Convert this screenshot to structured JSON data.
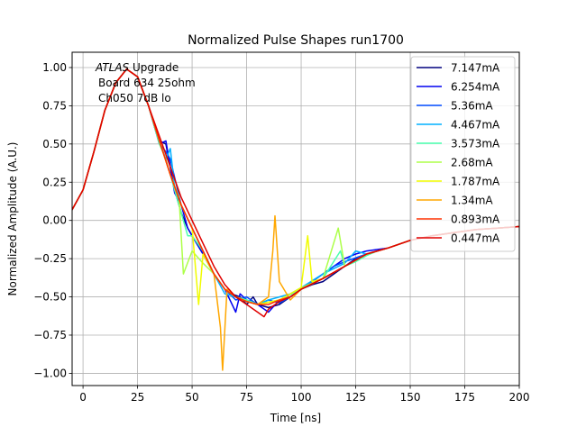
{
  "chart_data": {
    "type": "line",
    "title": "Normalized Pulse Shapes run1700",
    "xlabel": "Time [ns]",
    "ylabel": "Normalized Amplitude (A.U.)",
    "xlim": [
      -5,
      200
    ],
    "ylim": [
      -1.08,
      1.1
    ],
    "xticks": [
      0,
      25,
      50,
      75,
      100,
      125,
      150,
      175,
      200
    ],
    "xtick_labels": [
      "0",
      "25",
      "50",
      "75",
      "100",
      "125",
      "150",
      "175",
      "200"
    ],
    "yticks": [
      -1.0,
      -0.75,
      -0.5,
      -0.25,
      0.0,
      0.25,
      0.5,
      0.75,
      1.0
    ],
    "ytick_labels": [
      "−1.00",
      "−0.75",
      "−0.50",
      "−0.25",
      "0.00",
      "0.25",
      "0.50",
      "0.75",
      "1.00"
    ],
    "grid": true,
    "legend_position": "top-right",
    "annotation": {
      "line1_italic": "ATLAS",
      "line1_rest": " Upgrade",
      "line2": "Board 634 25ohm",
      "line3": "Ch050 7dB lo"
    },
    "series": [
      {
        "name": "7.147mA",
        "color": "#00007f",
        "x": [
          -5,
          0,
          5,
          10,
          15,
          20,
          25,
          30,
          35,
          38,
          42,
          45,
          48,
          50,
          55,
          60,
          65,
          68,
          72,
          75,
          78,
          80,
          85,
          90,
          95,
          100,
          105,
          110,
          115,
          120,
          125,
          130,
          135,
          140,
          150,
          160,
          170,
          180,
          190,
          200
        ],
        "y": [
          0.07,
          0.2,
          0.45,
          0.72,
          0.9,
          0.99,
          0.94,
          0.75,
          0.52,
          0.5,
          0.2,
          0.05,
          -0.05,
          -0.1,
          -0.22,
          -0.35,
          -0.45,
          -0.48,
          -0.5,
          -0.55,
          -0.5,
          -0.55,
          -0.57,
          -0.55,
          -0.5,
          -0.45,
          -0.42,
          -0.4,
          -0.35,
          -0.3,
          -0.25,
          -0.22,
          -0.2,
          -0.18,
          -0.13,
          -0.1,
          -0.08,
          -0.06,
          -0.05,
          -0.04
        ]
      },
      {
        "name": "6.254mA",
        "color": "#0000f1",
        "x": [
          -5,
          0,
          5,
          10,
          15,
          20,
          25,
          30,
          35,
          38,
          42,
          45,
          48,
          50,
          55,
          60,
          65,
          70,
          72,
          75,
          80,
          85,
          90,
          95,
          100,
          105,
          110,
          115,
          120,
          125,
          130,
          140,
          150,
          160,
          170,
          180,
          190,
          200
        ],
        "y": [
          0.07,
          0.2,
          0.45,
          0.72,
          0.9,
          0.99,
          0.94,
          0.75,
          0.5,
          0.52,
          0.18,
          0.1,
          -0.05,
          -0.1,
          -0.22,
          -0.35,
          -0.45,
          -0.6,
          -0.48,
          -0.52,
          -0.55,
          -0.6,
          -0.52,
          -0.5,
          -0.45,
          -0.4,
          -0.35,
          -0.3,
          -0.25,
          -0.22,
          -0.2,
          -0.18,
          -0.13,
          -0.1,
          -0.08,
          -0.06,
          -0.05,
          -0.04
        ]
      },
      {
        "name": "5.36mA",
        "color": "#004cff",
        "x": [
          -5,
          0,
          5,
          10,
          15,
          20,
          25,
          30,
          35,
          38,
          40,
          45,
          50,
          55,
          60,
          65,
          70,
          75,
          80,
          85,
          90,
          95,
          100,
          105,
          110,
          115,
          120,
          130,
          140,
          150,
          160,
          170,
          180,
          190,
          200
        ],
        "y": [
          0.07,
          0.2,
          0.45,
          0.72,
          0.9,
          0.99,
          0.94,
          0.75,
          0.5,
          0.45,
          0.4,
          0.1,
          -0.05,
          -0.2,
          -0.35,
          -0.45,
          -0.52,
          -0.5,
          -0.55,
          -0.52,
          -0.54,
          -0.5,
          -0.45,
          -0.4,
          -0.35,
          -0.3,
          -0.27,
          -0.22,
          -0.18,
          -0.13,
          -0.1,
          -0.08,
          -0.06,
          -0.05,
          -0.04
        ]
      },
      {
        "name": "4.467mA",
        "color": "#00b0ff",
        "x": [
          -5,
          0,
          5,
          10,
          15,
          20,
          25,
          30,
          35,
          38,
          40,
          42,
          45,
          50,
          55,
          60,
          65,
          70,
          75,
          80,
          85,
          90,
          95,
          100,
          110,
          120,
          125,
          130,
          140,
          150,
          160,
          170,
          180,
          190,
          200
        ],
        "y": [
          0.07,
          0.2,
          0.45,
          0.72,
          0.9,
          0.99,
          0.94,
          0.75,
          0.52,
          0.4,
          0.47,
          0.22,
          0.1,
          -0.05,
          -0.2,
          -0.35,
          -0.48,
          -0.5,
          -0.52,
          -0.55,
          -0.52,
          -0.5,
          -0.48,
          -0.44,
          -0.35,
          -0.28,
          -0.2,
          -0.22,
          -0.18,
          -0.13,
          -0.1,
          -0.08,
          -0.06,
          -0.05,
          -0.04
        ]
      },
      {
        "name": "3.573mA",
        "color": "#49ffad",
        "x": [
          -5,
          0,
          5,
          10,
          15,
          20,
          25,
          30,
          35,
          38,
          42,
          45,
          48,
          50,
          55,
          60,
          65,
          70,
          75,
          80,
          90,
          100,
          110,
          118,
          120,
          125,
          130,
          135,
          140,
          150,
          160,
          170,
          180,
          190,
          200
        ],
        "y": [
          0.07,
          0.2,
          0.45,
          0.72,
          0.9,
          0.99,
          0.94,
          0.75,
          0.5,
          0.4,
          0.2,
          0.05,
          -0.1,
          -0.1,
          -0.2,
          -0.35,
          -0.45,
          -0.5,
          -0.52,
          -0.55,
          -0.52,
          -0.45,
          -0.38,
          -0.2,
          -0.3,
          -0.27,
          -0.23,
          -0.2,
          -0.18,
          -0.13,
          -0.1,
          -0.08,
          -0.06,
          -0.05,
          -0.04
        ]
      },
      {
        "name": "2.68mA",
        "color": "#adff49",
        "x": [
          -5,
          0,
          5,
          10,
          15,
          20,
          25,
          30,
          35,
          40,
          44,
          46,
          50,
          55,
          60,
          65,
          70,
          75,
          80,
          90,
          100,
          110,
          117,
          120,
          130,
          140,
          150,
          160,
          170,
          180,
          190,
          200
        ],
        "y": [
          0.07,
          0.2,
          0.45,
          0.72,
          0.9,
          0.99,
          0.94,
          0.75,
          0.52,
          0.3,
          0.15,
          -0.35,
          -0.2,
          -0.28,
          -0.35,
          -0.45,
          -0.5,
          -0.53,
          -0.55,
          -0.52,
          -0.44,
          -0.38,
          -0.05,
          -0.3,
          -0.22,
          -0.18,
          -0.13,
          -0.1,
          -0.08,
          -0.06,
          -0.05,
          -0.04
        ]
      },
      {
        "name": "1.787mA",
        "color": "#f1fc00",
        "x": [
          -5,
          0,
          5,
          10,
          15,
          20,
          25,
          30,
          35,
          40,
          45,
          50,
          53,
          55,
          60,
          65,
          70,
          75,
          80,
          90,
          100,
          103,
          105,
          110,
          120,
          130,
          140,
          150,
          160,
          170,
          180,
          190,
          200
        ],
        "y": [
          0.07,
          0.2,
          0.45,
          0.72,
          0.9,
          0.99,
          0.94,
          0.75,
          0.52,
          0.3,
          0.1,
          -0.05,
          -0.55,
          -0.22,
          -0.35,
          -0.45,
          -0.5,
          -0.53,
          -0.55,
          -0.52,
          -0.44,
          -0.1,
          -0.4,
          -0.38,
          -0.3,
          -0.22,
          -0.18,
          -0.13,
          -0.1,
          -0.08,
          -0.06,
          -0.05,
          -0.04
        ]
      },
      {
        "name": "1.34mA",
        "color": "#ffa700",
        "x": [
          -5,
          0,
          5,
          10,
          15,
          20,
          25,
          30,
          35,
          40,
          45,
          50,
          55,
          60,
          63,
          64,
          66,
          70,
          75,
          80,
          85,
          87,
          88,
          90,
          95,
          100,
          110,
          120,
          130,
          140,
          150,
          160,
          170,
          180,
          190,
          200
        ],
        "y": [
          0.07,
          0.2,
          0.45,
          0.72,
          0.9,
          0.99,
          0.94,
          0.75,
          0.52,
          0.3,
          0.1,
          -0.05,
          -0.2,
          -0.35,
          -0.7,
          -0.98,
          -0.45,
          -0.5,
          -0.53,
          -0.55,
          -0.5,
          -0.2,
          0.03,
          -0.4,
          -0.52,
          -0.45,
          -0.38,
          -0.3,
          -0.22,
          -0.18,
          -0.13,
          -0.1,
          -0.08,
          -0.06,
          -0.05,
          -0.04
        ]
      },
      {
        "name": "0.893mA",
        "color": "#ff3000",
        "x": [
          -5,
          0,
          5,
          10,
          15,
          20,
          25,
          30,
          35,
          40,
          45,
          50,
          55,
          60,
          65,
          70,
          75,
          80,
          85,
          90,
          95,
          100,
          110,
          120,
          130,
          140,
          150,
          160,
          170,
          180,
          190,
          200
        ],
        "y": [
          0.07,
          0.2,
          0.45,
          0.72,
          0.9,
          0.99,
          0.94,
          0.75,
          0.52,
          0.3,
          0.1,
          -0.05,
          -0.2,
          -0.35,
          -0.45,
          -0.5,
          -0.53,
          -0.55,
          -0.55,
          -0.52,
          -0.5,
          -0.45,
          -0.38,
          -0.3,
          -0.22,
          -0.18,
          -0.13,
          -0.1,
          -0.08,
          -0.06,
          -0.05,
          -0.04
        ]
      },
      {
        "name": "0.447mA",
        "color": "#e00000",
        "x": [
          -5,
          0,
          5,
          10,
          15,
          20,
          25,
          30,
          35,
          40,
          45,
          50,
          55,
          60,
          65,
          70,
          75,
          80,
          83,
          85,
          90,
          95,
          100,
          110,
          120,
          130,
          140,
          150,
          160,
          170,
          180,
          190,
          200
        ],
        "y": [
          0.07,
          0.2,
          0.45,
          0.72,
          0.9,
          0.99,
          0.94,
          0.75,
          0.55,
          0.35,
          0.15,
          0.0,
          -0.15,
          -0.3,
          -0.42,
          -0.5,
          -0.55,
          -0.6,
          -0.63,
          -0.58,
          -0.53,
          -0.5,
          -0.45,
          -0.38,
          -0.3,
          -0.22,
          -0.18,
          -0.13,
          -0.1,
          -0.08,
          -0.06,
          -0.05,
          -0.04
        ]
      }
    ]
  }
}
